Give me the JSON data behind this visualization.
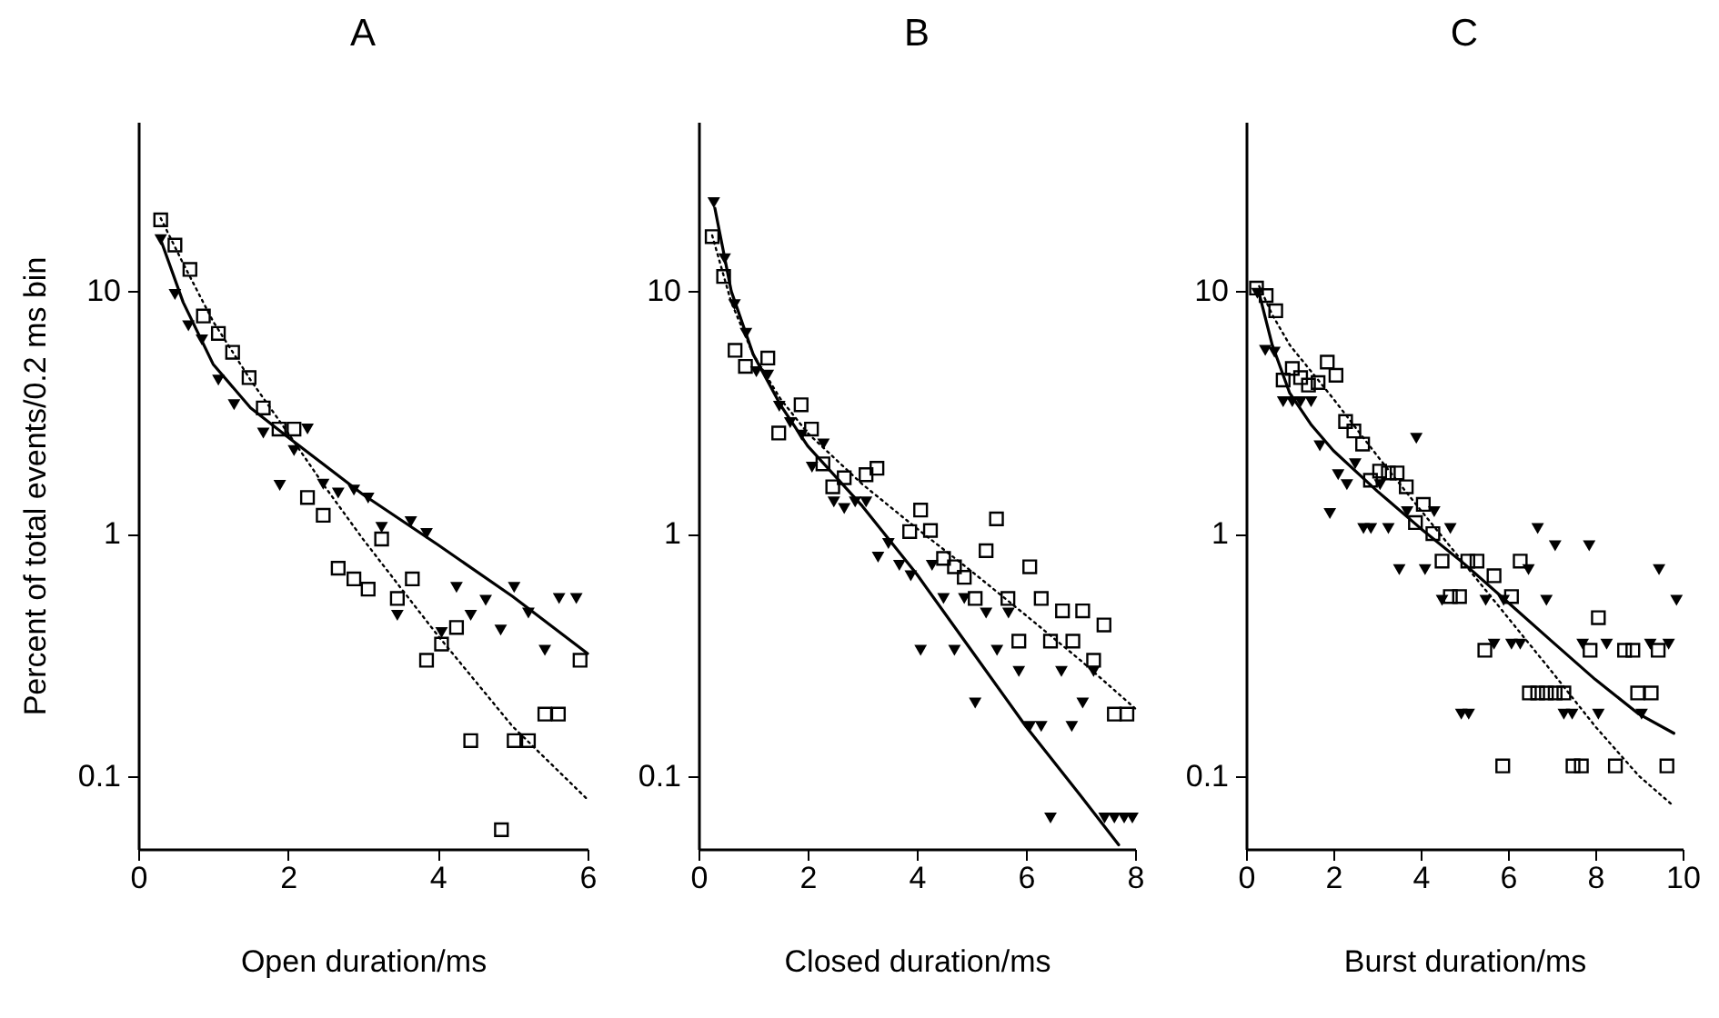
{
  "chart_data": [
    {
      "type": "scatter",
      "title": "A",
      "xlabel": "Open duration/ms",
      "ylabel": "Percent of total events/0.2 ms bin",
      "log": "y",
      "xlim": [
        0,
        6
      ],
      "xticks": [
        0,
        2,
        4,
        6
      ],
      "ylim": [
        0.05,
        50
      ],
      "yticks": [
        0.1,
        1,
        10
      ],
      "series": [
        {
          "marker": "square",
          "color": "#000000",
          "x": [
            0.3,
            0.49,
            0.69,
            0.87,
            1.07,
            1.26,
            1.48,
            1.67,
            1.88,
            2.08,
            2.26,
            2.47,
            2.67,
            2.88,
            3.07,
            3.25,
            3.46,
            3.66,
            3.85,
            4.05,
            4.25,
            4.44,
            4.85,
            5.02,
            5.21,
            5.43,
            5.61,
            5.9
          ],
          "values": [
            19.7,
            15.5,
            12.3,
            7.9,
            6.7,
            5.6,
            4.4,
            3.3,
            2.7,
            2.7,
            1.41,
            1.19,
            0.72,
            0.65,
            0.59,
            0.95,
            0.54,
            0.65,
            0.3,
            0.35,
            0.41,
            0.14,
            0.06,
            0.14,
            0.14,
            0.18,
            0.18,
            0.3
          ]
        },
        {
          "marker": "triangle",
          "color": "#000000",
          "x": [
            0.3,
            0.49,
            0.67,
            0.85,
            1.07,
            1.28,
            1.67,
            1.89,
            2.08,
            2.26,
            2.47,
            2.67,
            2.88,
            3.07,
            3.25,
            3.46,
            3.64,
            3.85,
            4.05,
            4.25,
            4.44,
            4.64,
            4.84,
            5.02,
            5.21,
            5.43,
            5.62,
            5.85
          ],
          "values": [
            16.3,
            9.7,
            7.2,
            6.3,
            4.3,
            3.4,
            2.6,
            1.58,
            2.2,
            2.7,
            1.6,
            1.47,
            1.51,
            1.4,
            1.06,
            0.46,
            1.12,
            1.0,
            0.39,
            0.6,
            0.46,
            0.53,
            0.4,
            0.6,
            0.47,
            0.33,
            0.54,
            0.54
          ]
        },
        {
          "type": "line",
          "line_style": "solid",
          "color": "#000000",
          "x": [
            0.3,
            0.6,
            1.0,
            1.5,
            2.0,
            3.0,
            4.0,
            5.0,
            6.0
          ],
          "values": [
            16.3,
            9,
            5.0,
            3.3,
            2.5,
            1.45,
            0.9,
            0.55,
            0.32
          ]
        },
        {
          "type": "line",
          "line_style": "dotted",
          "color": "#000000",
          "x": [
            0.3,
            0.6,
            1.0,
            1.5,
            2.0,
            2.5,
            3.0,
            3.5,
            4.0,
            5.0,
            6.0
          ],
          "values": [
            20,
            13,
            7.5,
            4.3,
            2.6,
            1.55,
            0.95,
            0.6,
            0.38,
            0.16,
            0.08
          ]
        }
      ]
    },
    {
      "type": "scatter",
      "title": "B",
      "xlabel": "Closed duration/ms",
      "log": "y",
      "xlim": [
        0,
        8
      ],
      "xticks": [
        0,
        2,
        4,
        6,
        8
      ],
      "ylim": [
        0.05,
        50
      ],
      "yticks": [
        0.1,
        1,
        10
      ],
      "series": [
        {
          "marker": "square",
          "color": "#000000",
          "x": [
            0.25,
            0.46,
            0.67,
            0.86,
            1.27,
            1.47,
            1.88,
            2.07,
            2.28,
            2.46,
            2.67,
            3.07,
            3.27,
            3.87,
            4.07,
            4.25,
            4.49,
            4.69,
            4.87,
            5.07,
            5.27,
            5.46,
            5.67,
            5.87,
            6.07,
            6.28,
            6.45,
            6.67,
            6.86,
            7.04,
            7.24,
            7.43,
            7.62,
            7.85
          ],
          "values": [
            16.8,
            11.5,
            5.7,
            4.9,
            5.3,
            2.6,
            3.4,
            2.7,
            1.94,
            1.56,
            1.7,
            1.75,
            1.86,
            1.02,
            1.25,
            1.03,
            0.79,
            0.73,
            0.66,
            0.54,
            0.85,
            1.15,
            0.54,
            0.36,
            0.73,
            0.54,
            0.36,
            0.48,
            0.36,
            0.48,
            0.3,
            0.42,
            0.18,
            0.18
          ]
        },
        {
          "marker": "triangle",
          "color": "#000000",
          "x": [
            0.28,
            0.48,
            0.66,
            0.87,
            1.06,
            1.27,
            1.48,
            1.68,
            1.89,
            2.08,
            2.29,
            2.48,
            2.67,
            2.87,
            3.07,
            3.29,
            3.48,
            3.68,
            3.89,
            4.07,
            4.28,
            4.49,
            4.69,
            4.87,
            5.07,
            5.27,
            5.47,
            5.68,
            5.87,
            6.07,
            6.28,
            6.45,
            6.65,
            6.84,
            7.04,
            7.24,
            7.44,
            7.62,
            7.8,
            7.95
          ],
          "values": [
            23.2,
            13.6,
            8.8,
            6.7,
            4.65,
            4.5,
            3.35,
            2.87,
            2.55,
            1.88,
            2.34,
            1.35,
            1.27,
            1.35,
            1.35,
            0.8,
            0.91,
            0.74,
            0.67,
            0.33,
            0.74,
            0.54,
            0.33,
            0.54,
            0.2,
            0.47,
            0.33,
            0.47,
            0.27,
            0.16,
            0.16,
            0.067,
            0.27,
            0.16,
            0.2,
            0.27,
            0.067,
            0.067,
            0.067,
            0.067
          ]
        },
        {
          "type": "line",
          "line_style": "solid",
          "color": "#000000",
          "x": [
            0.3,
            0.6,
            1.0,
            1.5,
            2.0,
            3.0,
            4.0,
            5.0,
            6.0,
            7.0,
            7.7
          ],
          "values": [
            22,
            10,
            5.5,
            3.4,
            2.3,
            1.3,
            0.68,
            0.33,
            0.16,
            0.083,
            0.052
          ]
        },
        {
          "type": "line",
          "line_style": "dotted",
          "color": "#000000",
          "x": [
            0.25,
            0.6,
            1.0,
            1.5,
            2.0,
            3.0,
            4.0,
            5.0,
            6.0,
            7.0,
            8.0
          ],
          "values": [
            17,
            9,
            5.5,
            3.6,
            2.6,
            1.6,
            1.05,
            0.7,
            0.46,
            0.3,
            0.19
          ]
        }
      ]
    },
    {
      "type": "scatter",
      "title": "C",
      "xlabel": "Burst duration/ms",
      "log": "y",
      "xlim": [
        0,
        10
      ],
      "xticks": [
        0,
        2,
        4,
        6,
        8,
        10
      ],
      "ylim": [
        0.05,
        50
      ],
      "yticks": [
        0.1,
        1,
        10
      ],
      "series": [
        {
          "marker": "square",
          "color": "#000000",
          "x": [
            0.24,
            0.46,
            0.68,
            0.85,
            1.06,
            1.25,
            1.43,
            1.65,
            1.86,
            2.06,
            2.28,
            2.47,
            2.67,
            2.85,
            3.06,
            3.26,
            3.46,
            3.67,
            3.88,
            4.06,
            4.28,
            4.49,
            4.68,
            4.89,
            5.08,
            5.29,
            5.47,
            5.68,
            5.88,
            6.08,
            6.28,
            6.49,
            6.68,
            6.88,
            7.08,
            7.28,
            7.49,
            7.68,
            7.88,
            8.07,
            8.46,
            8.67,
            8.86,
            8.97,
            9.28,
            9.44,
            9.64
          ],
          "values": [
            10.3,
            9.6,
            8.3,
            4.3,
            4.8,
            4.4,
            4.1,
            4.2,
            5.1,
            4.5,
            2.9,
            2.65,
            2.34,
            1.66,
            1.81,
            1.78,
            1.78,
            1.56,
            1.11,
            1.32,
            1.0,
            0.77,
            0.55,
            0.55,
            0.77,
            0.77,
            0.33,
            0.67,
            0.11,
            0.55,
            0.77,
            0.22,
            0.22,
            0.22,
            0.22,
            0.22,
            0.11,
            0.11,
            0.33,
            0.45,
            0.11,
            0.33,
            0.33,
            0.22,
            0.22,
            0.33,
            0.11
          ]
        },
        {
          "marker": "triangle",
          "color": "#000000",
          "x": [
            0.26,
            0.44,
            0.65,
            0.85,
            1.06,
            1.25,
            1.49,
            1.69,
            1.92,
            2.11,
            2.31,
            2.5,
            2.69,
            2.86,
            3.07,
            3.26,
            3.51,
            3.69,
            3.9,
            4.1,
            4.31,
            4.49,
            4.68,
            4.93,
            5.1,
            5.49,
            5.68,
            5.9,
            6.08,
            6.28,
            6.47,
            6.68,
            6.88,
            7.08,
            7.28,
            7.47,
            7.71,
            7.86,
            8.07,
            8.26,
            9.06,
            9.26,
            9.46,
            9.68,
            9.86
          ],
          "values": [
            9.8,
            5.7,
            5.6,
            3.5,
            3.5,
            3.5,
            3.5,
            2.3,
            1.21,
            1.75,
            1.59,
            1.94,
            1.05,
            1.05,
            1.59,
            1.05,
            0.71,
            1.23,
            2.47,
            0.71,
            1.23,
            0.53,
            1.05,
            0.18,
            0.18,
            0.53,
            0.35,
            0.53,
            0.35,
            0.35,
            0.71,
            1.05,
            0.53,
            0.89,
            0.18,
            0.18,
            0.35,
            0.89,
            0.18,
            0.35,
            0.18,
            0.35,
            0.71,
            0.35,
            0.53
          ]
        },
        {
          "type": "line",
          "line_style": "solid",
          "color": "#000000",
          "x": [
            0.3,
            0.6,
            1.0,
            1.5,
            2.0,
            3.0,
            4.0,
            5.0,
            6.0,
            7.0,
            8.0,
            9.0,
            9.8
          ],
          "values": [
            9.8,
            6.0,
            3.8,
            2.8,
            2.2,
            1.5,
            1.05,
            0.75,
            0.52,
            0.36,
            0.25,
            0.18,
            0.15
          ]
        },
        {
          "type": "line",
          "line_style": "dotted",
          "color": "#000000",
          "x": [
            0.3,
            0.6,
            1.0,
            2.0,
            3.0,
            4.0,
            5.0,
            6.0,
            7.0,
            8.0,
            9.0,
            9.8
          ],
          "values": [
            10.5,
            8,
            6,
            3.6,
            2.1,
            1.25,
            0.75,
            0.45,
            0.27,
            0.16,
            0.1,
            0.075
          ]
        }
      ]
    }
  ]
}
